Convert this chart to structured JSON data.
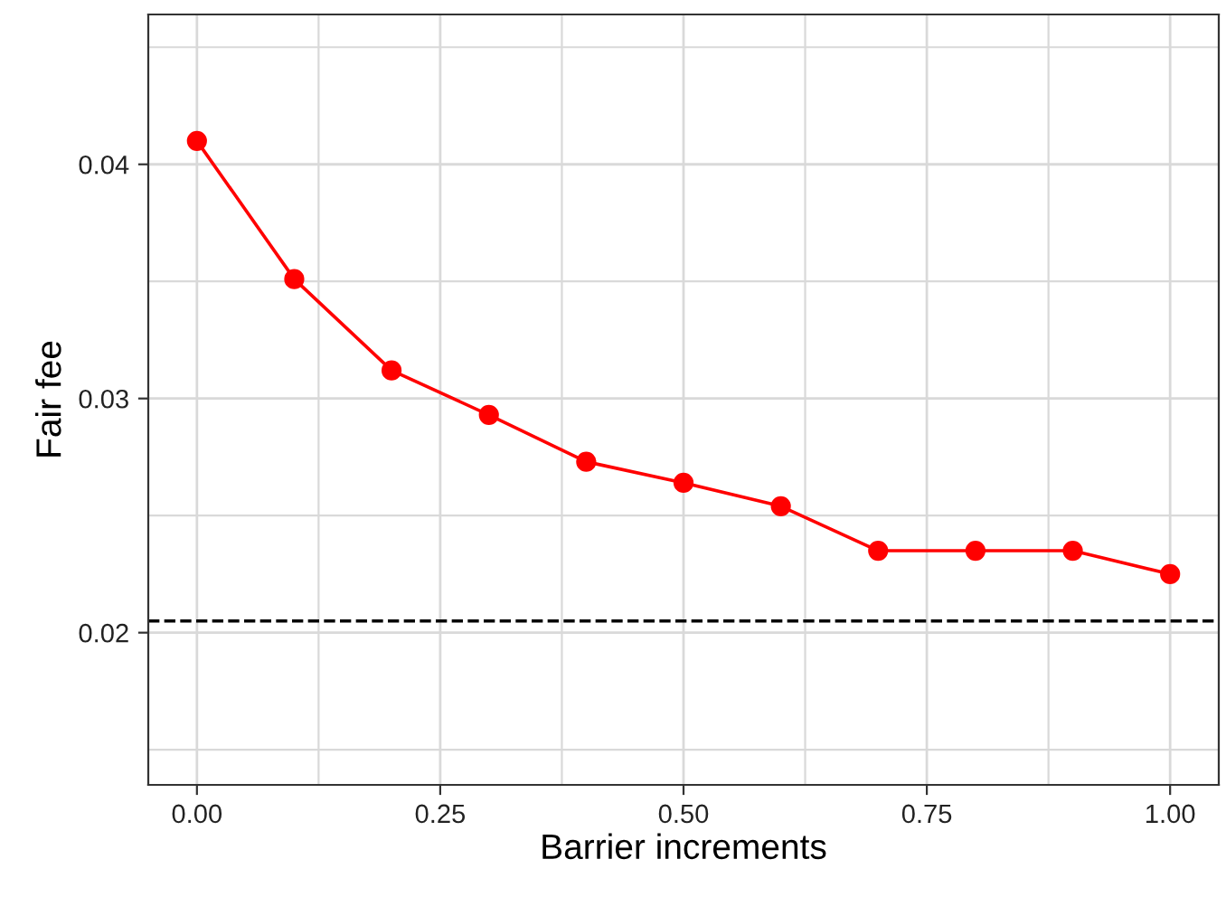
{
  "chart_data": {
    "type": "line",
    "xlabel": "Barrier increments",
    "ylabel": "Fair fee",
    "x": [
      0,
      0.1,
      0.2,
      0.3,
      0.4,
      0.5,
      0.6,
      0.7,
      0.8,
      0.9,
      1.0
    ],
    "series": [
      {
        "color": "#ff0000",
        "values": [
          0.041,
          0.0351,
          0.0312,
          0.0293,
          0.0273,
          0.0264,
          0.0254,
          0.0235,
          0.0235,
          0.0235,
          0.0225
        ]
      }
    ],
    "marker": "circle",
    "line_style": "solid",
    "xlim": [
      -0.05,
      1.05
    ],
    "xticks": [
      {
        "value": 0,
        "label": "0.00"
      },
      {
        "value": 0.25,
        "label": "0.25"
      },
      {
        "value": 0.5,
        "label": "0.50"
      },
      {
        "value": 0.75,
        "label": "0.75"
      },
      {
        "value": 1,
        "label": "1.00"
      }
    ],
    "ylim": [
      0.0135,
      0.0464
    ],
    "yticks": [
      0.02,
      0.03,
      0.04
    ],
    "ref_lines": [
      {
        "axis": "y",
        "value": 0.0205,
        "color": "#000000",
        "line_style": "dashed"
      }
    ],
    "grid": true
  }
}
